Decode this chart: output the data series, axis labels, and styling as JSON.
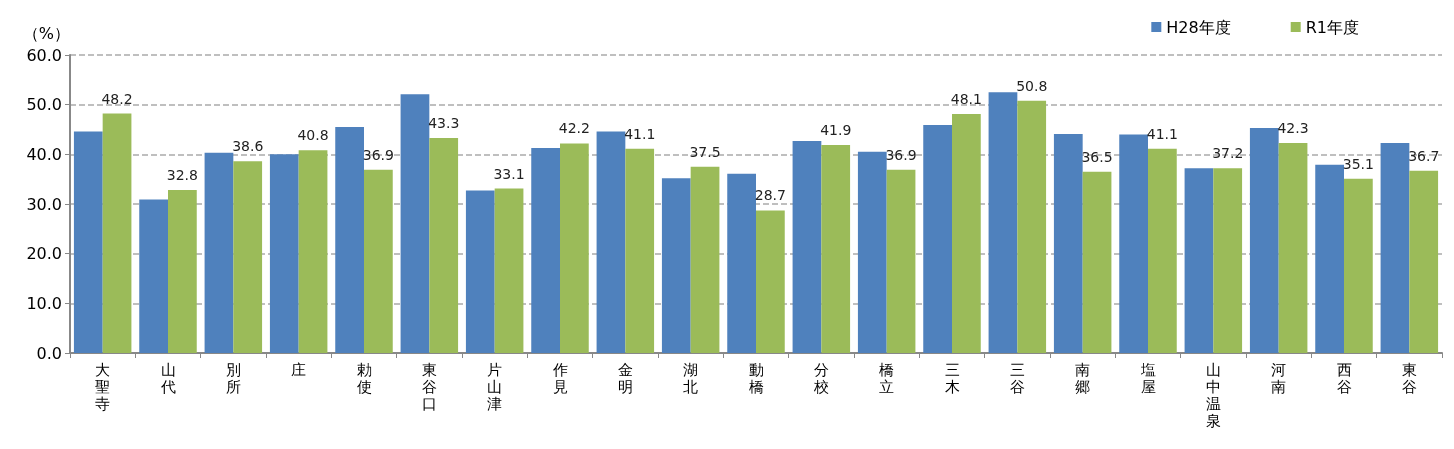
{
  "chart_data": {
    "type": "bar",
    "ylabel": "（%）",
    "categories": [
      "大聖寺",
      "山代",
      "別所",
      "庄",
      "勅使",
      "東谷口",
      "片山津",
      "作見",
      "金明",
      "湖北",
      "動橋",
      "分校",
      "橋立",
      "三木",
      "三谷",
      "南郷",
      "塩屋",
      "山中温泉",
      "河南",
      "西谷",
      "東谷"
    ],
    "series": [
      {
        "name": "H28年度",
        "color": "#4f81bd",
        "values": [
          44.6,
          30.9,
          40.3,
          40.0,
          45.5,
          52.1,
          32.7,
          41.3,
          44.6,
          35.2,
          36.1,
          42.7,
          40.5,
          45.9,
          52.5,
          44.1,
          44.0,
          37.2,
          45.3,
          37.9,
          42.3
        ]
      },
      {
        "name": "R1年度",
        "color": "#9bbb59",
        "values": [
          48.2,
          32.8,
          38.6,
          40.8,
          36.9,
          43.3,
          33.1,
          42.2,
          41.1,
          37.5,
          28.7,
          41.9,
          36.9,
          48.1,
          50.8,
          36.5,
          41.1,
          37.2,
          42.3,
          35.1,
          36.7
        ],
        "value_labels": [
          "48.2",
          "32.8",
          "38.6",
          "40.8",
          "36.9",
          "43.3",
          "33.1",
          "42.2",
          "41.1",
          "37.5",
          "28.7",
          "41.9",
          "36.9",
          "48.1",
          "50.8",
          "36.5",
          "41.1",
          "37.2",
          "42.3",
          "35.1",
          "36.7"
        ]
      }
    ],
    "ylim": [
      0,
      60
    ],
    "yticks": [
      {
        "value": 0,
        "label": "0.0"
      },
      {
        "value": 10,
        "label": "10.0"
      },
      {
        "value": 20,
        "label": "20.0"
      },
      {
        "value": 30,
        "label": "30.0"
      },
      {
        "value": 40,
        "label": "40.0"
      },
      {
        "value": 50,
        "label": "50.0"
      },
      {
        "value": 60,
        "label": "60.0"
      }
    ],
    "grid": "y",
    "legend": "top right"
  }
}
